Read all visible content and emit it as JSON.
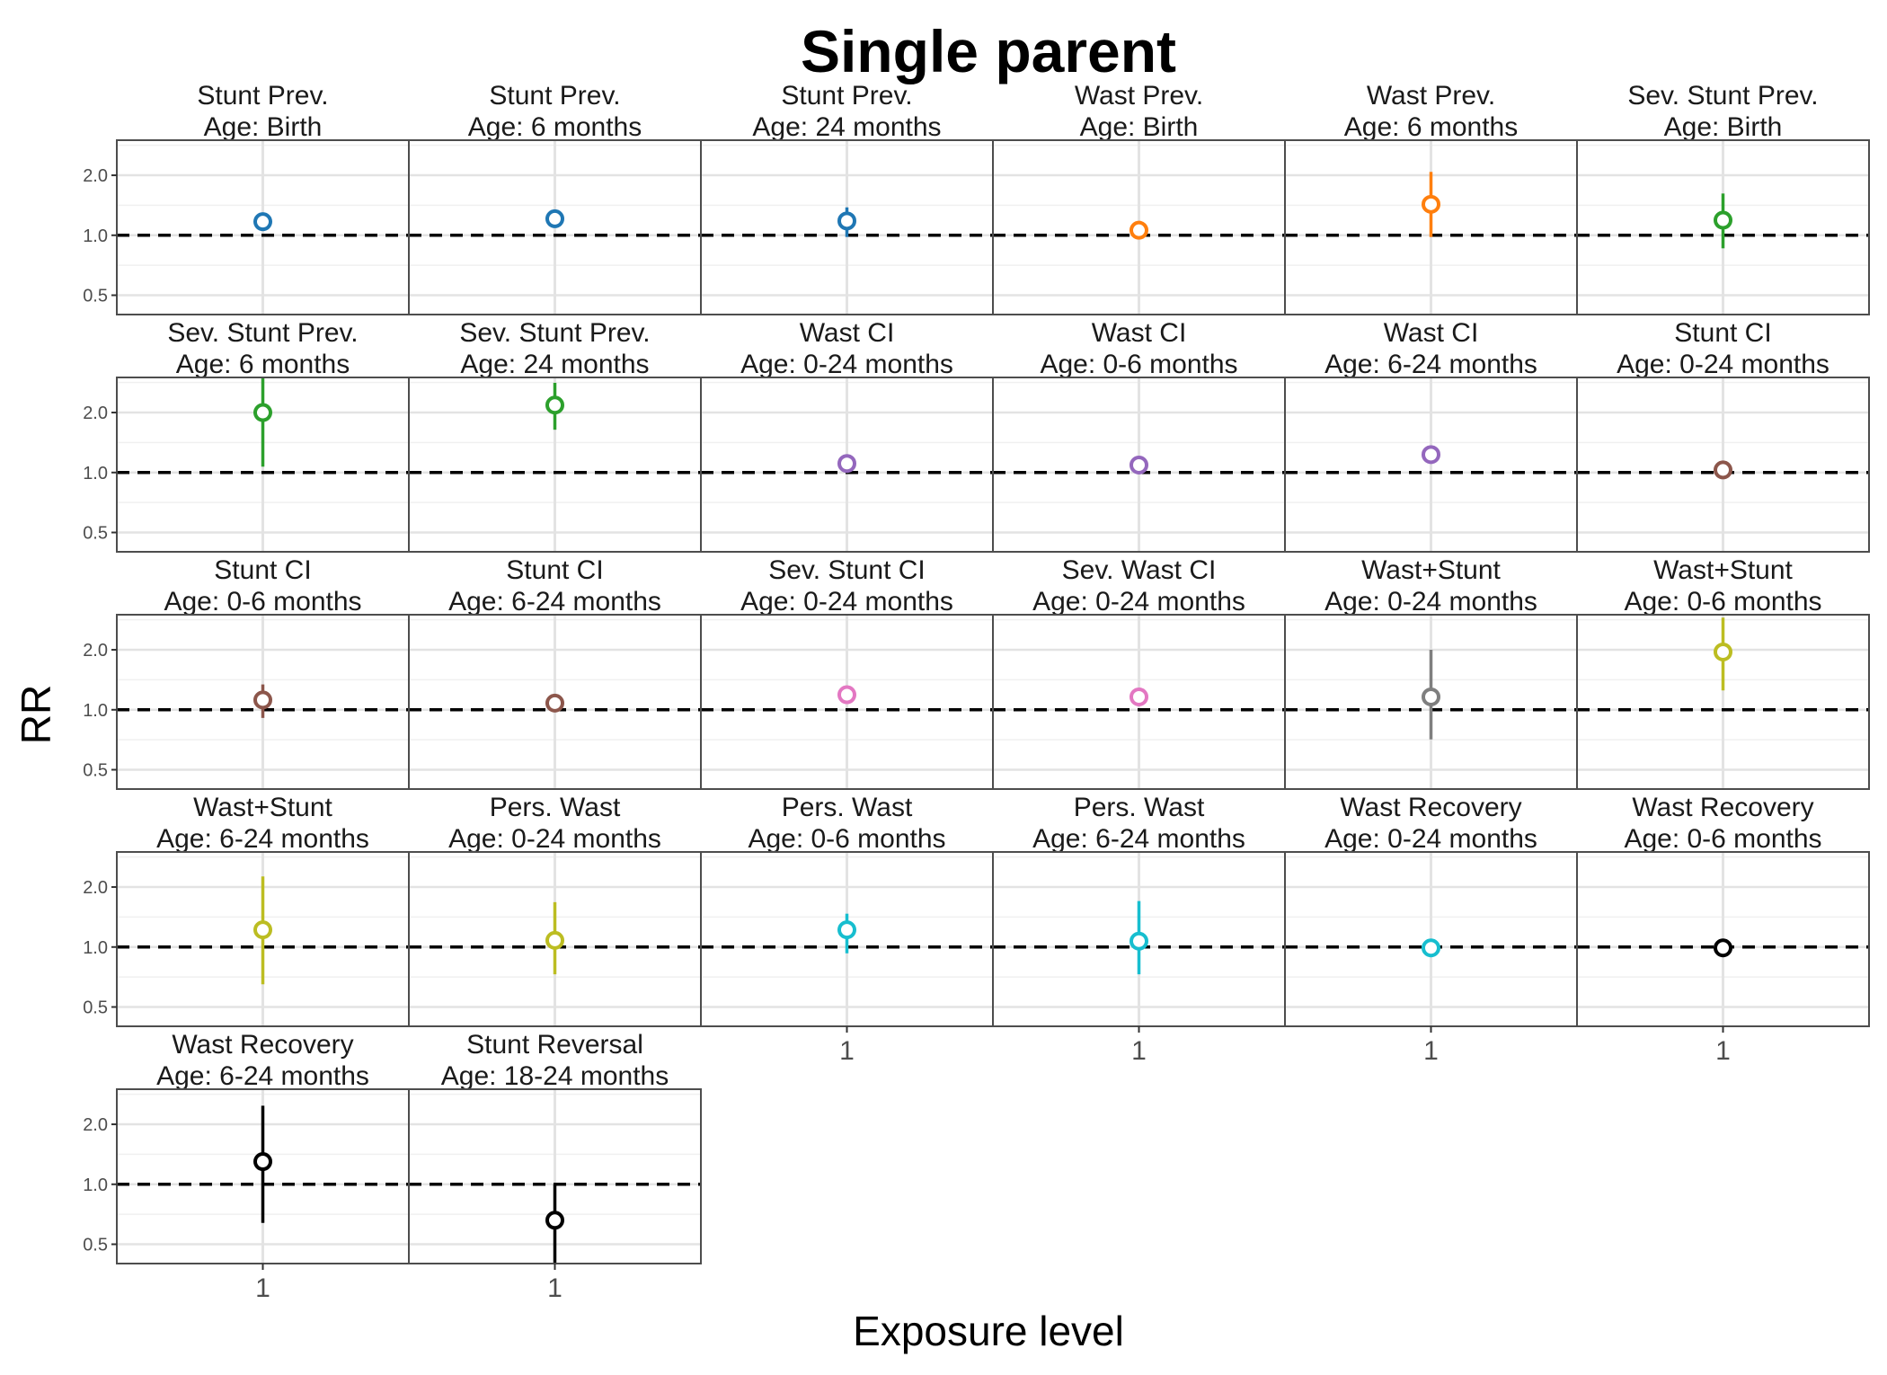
{
  "chart_data": {
    "type": "scatter",
    "title": "Single parent",
    "xlabel": "Exposure level",
    "ylabel": "RR",
    "y_scale": "log",
    "ylim": [
      0.4,
      3.0
    ],
    "y_ticks": [
      0.5,
      1.0,
      2.0
    ],
    "y_tick_labels": [
      "0.5",
      "1.0",
      "2.0"
    ],
    "x_category": "1",
    "reference_line": 1.0,
    "grid": true,
    "layout": "facet grid 6 columns x 5 rows",
    "panels": [
      {
        "outcome": "Stunt Prev.",
        "age": "Age: Birth",
        "color": "#1F77B4",
        "rr": 1.17,
        "lower": 1.05,
        "upper": 1.27
      },
      {
        "outcome": "Stunt Prev.",
        "age": "Age: 6 months",
        "color": "#1F77B4",
        "rr": 1.21,
        "lower": 1.14,
        "upper": 1.28
      },
      {
        "outcome": "Stunt Prev.",
        "age": "Age: 24 months",
        "color": "#1F77B4",
        "rr": 1.18,
        "lower": 0.98,
        "upper": 1.38
      },
      {
        "outcome": "Wast Prev.",
        "age": "Age: Birth",
        "color": "#FF7F0E",
        "rr": 1.06,
        "lower": 1.01,
        "upper": 1.11
      },
      {
        "outcome": "Wast Prev.",
        "age": "Age: 6 months",
        "color": "#FF7F0E",
        "rr": 1.43,
        "lower": 0.98,
        "upper": 2.08
      },
      {
        "outcome": "Sev. Stunt Prev.",
        "age": "Age: Birth",
        "color": "#2CA02C",
        "rr": 1.19,
        "lower": 0.86,
        "upper": 1.62
      },
      {
        "outcome": "Sev. Stunt Prev.",
        "age": "Age: 6 months",
        "color": "#2CA02C",
        "rr": 2.0,
        "lower": 1.07,
        "upper": 3.05
      },
      {
        "outcome": "Sev. Stunt Prev.",
        "age": "Age: 24 months",
        "color": "#2CA02C",
        "rr": 2.18,
        "lower": 1.64,
        "upper": 2.82
      },
      {
        "outcome": "Wast CI",
        "age": "Age: 0-24 months",
        "color": "#9467BD",
        "rr": 1.11,
        "lower": 1.05,
        "upper": 1.17
      },
      {
        "outcome": "Wast CI",
        "age": "Age: 0-6 months",
        "color": "#9467BD",
        "rr": 1.09,
        "lower": 1.02,
        "upper": 1.16
      },
      {
        "outcome": "Wast CI",
        "age": "Age: 6-24 months",
        "color": "#9467BD",
        "rr": 1.23,
        "lower": 1.12,
        "upper": 1.34
      },
      {
        "outcome": "Stunt CI",
        "age": "Age: 0-24 months",
        "color": "#8C564B",
        "rr": 1.03,
        "lower": 0.96,
        "upper": 1.1
      },
      {
        "outcome": "Stunt CI",
        "age": "Age: 0-6 months",
        "color": "#8C564B",
        "rr": 1.12,
        "lower": 0.91,
        "upper": 1.34
      },
      {
        "outcome": "Stunt CI",
        "age": "Age: 6-24 months",
        "color": "#8C564B",
        "rr": 1.08,
        "lower": 1.01,
        "upper": 1.15
      },
      {
        "outcome": "Sev. Stunt CI",
        "age": "Age: 0-24 months",
        "color": "#E377C2",
        "rr": 1.19,
        "lower": 1.12,
        "upper": 1.26
      },
      {
        "outcome": "Sev. Wast CI",
        "age": "Age: 0-24 months",
        "color": "#E377C2",
        "rr": 1.16,
        "lower": 1.09,
        "upper": 1.23
      },
      {
        "outcome": "Wast+Stunt",
        "age": "Age: 0-24 months",
        "color": "#7F7F7F",
        "rr": 1.16,
        "lower": 0.71,
        "upper": 2.0
      },
      {
        "outcome": "Wast+Stunt",
        "age": "Age: 0-6 months",
        "color": "#BCBD22",
        "rr": 1.95,
        "lower": 1.25,
        "upper": 2.9
      },
      {
        "outcome": "Wast+Stunt",
        "age": "Age: 6-24 months",
        "color": "#BCBD22",
        "rr": 1.22,
        "lower": 0.65,
        "upper": 2.26
      },
      {
        "outcome": "Pers. Wast",
        "age": "Age: 0-24 months",
        "color": "#BCBD22",
        "rr": 1.08,
        "lower": 0.73,
        "upper": 1.68
      },
      {
        "outcome": "Pers. Wast",
        "age": "Age: 0-6 months",
        "color": "#17BECF",
        "rr": 1.22,
        "lower": 0.93,
        "upper": 1.47
      },
      {
        "outcome": "Pers. Wast",
        "age": "Age: 6-24 months",
        "color": "#17BECF",
        "rr": 1.07,
        "lower": 0.73,
        "upper": 1.7
      },
      {
        "outcome": "Wast Recovery",
        "age": "Age: 0-24 months",
        "color": "#17BECF",
        "rr": 0.99,
        "lower": 0.97,
        "upper": 1.01
      },
      {
        "outcome": "Wast Recovery",
        "age": "Age: 0-6 months",
        "color": "#000000",
        "rr": 0.99,
        "lower": 0.97,
        "upper": 1.01
      },
      {
        "outcome": "Wast Recovery",
        "age": "Age: 6-24 months",
        "color": "#000000",
        "rr": 1.3,
        "lower": 0.64,
        "upper": 2.48
      },
      {
        "outcome": "Stunt Reversal",
        "age": "Age: 18-24 months",
        "color": "#000000",
        "rr": 0.66,
        "lower": 0.38,
        "upper": 1.0
      }
    ]
  }
}
